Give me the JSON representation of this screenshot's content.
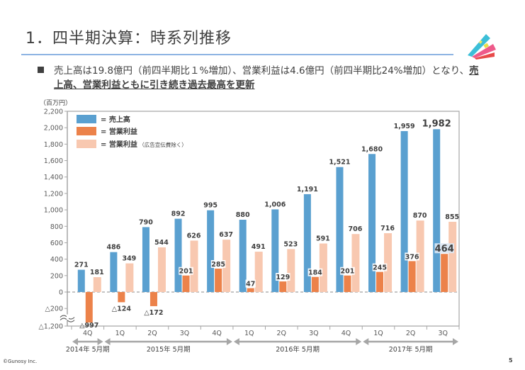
{
  "title": "1．四半期決算：時系列推移",
  "bullet": {
    "text_plain": "売上高は19.8億円（前四半期比１%増加）、営業利益は4.6億円（前四半期比24%増加）となり、",
    "text_emphasis": "売上高、営業利益ともに引き続き過去最高を更新"
  },
  "logo": "cards-logo-icon",
  "footer": {
    "copyright": "©Gunosy Inc.",
    "page_number": "5"
  },
  "colors": {
    "revenue": "#5aa0d0",
    "operating_profit": "#ec824a",
    "operating_profit_ex_ad": "#f8c8b0",
    "axis": "#a6a6a6",
    "title_rule": "#8eb4e3"
  },
  "chart_data": {
    "type": "bar",
    "unit_label": "（百万円）",
    "ylim": [
      -1200,
      2200
    ],
    "yaxis_break": [
      -200,
      -1200
    ],
    "y_ticks": [
      {
        "value": 2200,
        "label": "2,200"
      },
      {
        "value": 2000,
        "label": "2,000"
      },
      {
        "value": 1800,
        "label": "1,800"
      },
      {
        "value": 1600,
        "label": "1,600"
      },
      {
        "value": 1400,
        "label": "1,400"
      },
      {
        "value": 1200,
        "label": "1,200"
      },
      {
        "value": 1000,
        "label": "1,000"
      },
      {
        "value": 800,
        "label": "800"
      },
      {
        "value": 600,
        "label": "600"
      },
      {
        "value": 400,
        "label": "400"
      },
      {
        "value": 200,
        "label": "200"
      },
      {
        "value": 0,
        "label": "0"
      },
      {
        "value": -200,
        "label": "△200"
      },
      {
        "value": -1200,
        "label": "△1,200"
      }
    ],
    "categories": [
      "4Q",
      "1Q",
      "2Q",
      "3Q",
      "4Q",
      "1Q",
      "2Q",
      "3Q",
      "4Q",
      "1Q",
      "2Q",
      "3Q"
    ],
    "periods": [
      {
        "label": "2014年 5月期",
        "from": 0,
        "to": 0
      },
      {
        "label": "2015年 5月期",
        "from": 1,
        "to": 4
      },
      {
        "label": "2016年 5月期",
        "from": 5,
        "to": 8
      },
      {
        "label": "2017年 5月期",
        "from": 9,
        "to": 11
      }
    ],
    "legend": [
      {
        "name": "= 売上高",
        "note": ""
      },
      {
        "name": "= 営業利益",
        "note": ""
      },
      {
        "name": "= 営業利益",
        "note": "（広告宣伝費除く）"
      }
    ],
    "legend_position": "top-left",
    "grid": false,
    "series": [
      {
        "name": "売上高",
        "values": [
          271,
          486,
          790,
          892,
          995,
          880,
          1006,
          1191,
          1521,
          1680,
          1959,
          1982
        ],
        "labels": [
          "271",
          "486",
          "790",
          "892",
          "995",
          "880",
          "1,006",
          "1,191",
          "1,521",
          "1,680",
          "1,959",
          "1,982"
        ]
      },
      {
        "name": "営業利益",
        "values": [
          -997,
          -124,
          -172,
          201,
          285,
          47,
          129,
          184,
          201,
          245,
          376,
          464
        ],
        "labels": [
          "△997",
          "△124",
          "△172",
          "201",
          "285",
          "47",
          "129",
          "184",
          "201",
          "245",
          "376",
          "464"
        ]
      },
      {
        "name": "営業利益（広告宣伝費除く）",
        "values": [
          181,
          349,
          544,
          626,
          637,
          491,
          523,
          591,
          706,
          716,
          870,
          855
        ],
        "labels": [
          "181",
          "349",
          "544",
          "626",
          "637",
          "491",
          "523",
          "591",
          "706",
          "716",
          "870",
          "855"
        ]
      }
    ],
    "highlight_last": true
  }
}
